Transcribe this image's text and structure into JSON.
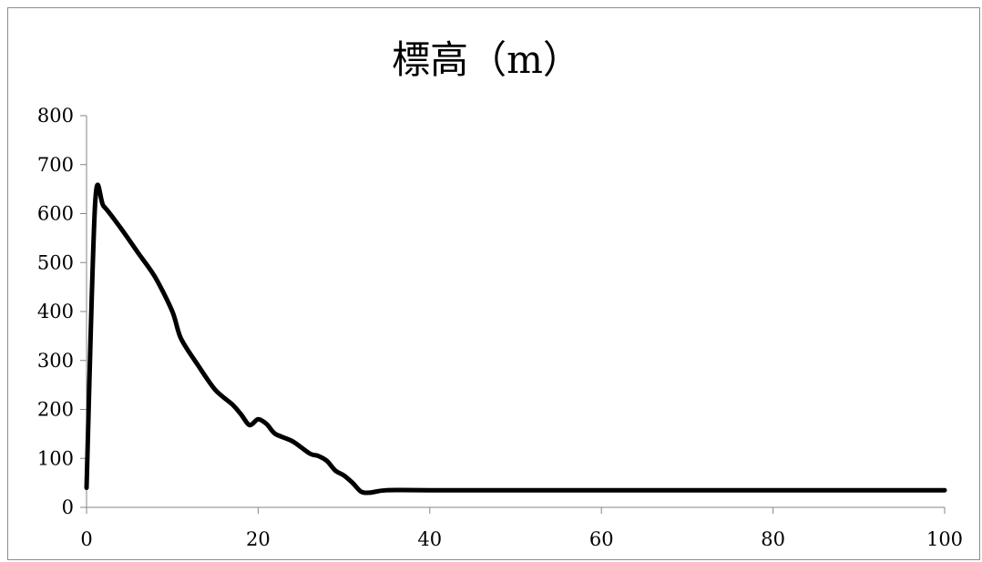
{
  "chart_data": {
    "type": "line",
    "title": "標高（m）",
    "xlabel": "",
    "ylabel": "",
    "xlim": [
      0,
      100
    ],
    "ylim": [
      0,
      800
    ],
    "x_ticks": [
      "0",
      "20",
      "40",
      "60",
      "80",
      "100"
    ],
    "y_ticks": [
      "0",
      "100",
      "200",
      "300",
      "400",
      "500",
      "600",
      "700",
      "800"
    ],
    "grid": false,
    "legend": "none",
    "series": [
      {
        "color": "#000000",
        "points": [
          [
            0,
            40
          ],
          [
            1,
            620
          ],
          [
            2,
            615
          ],
          [
            4,
            570
          ],
          [
            6,
            520
          ],
          [
            8,
            470
          ],
          [
            10,
            400
          ],
          [
            11,
            345
          ],
          [
            13,
            290
          ],
          [
            15,
            240
          ],
          [
            17,
            210
          ],
          [
            18,
            190
          ],
          [
            19,
            168
          ],
          [
            20,
            180
          ],
          [
            21,
            170
          ],
          [
            22,
            150
          ],
          [
            24,
            135
          ],
          [
            26,
            110
          ],
          [
            27,
            105
          ],
          [
            28,
            95
          ],
          [
            29,
            75
          ],
          [
            30,
            65
          ],
          [
            31,
            50
          ],
          [
            32,
            32
          ],
          [
            33,
            30
          ],
          [
            35,
            35
          ],
          [
            40,
            35
          ],
          [
            60,
            35
          ],
          [
            80,
            35
          ],
          [
            100,
            35
          ]
        ]
      }
    ]
  }
}
